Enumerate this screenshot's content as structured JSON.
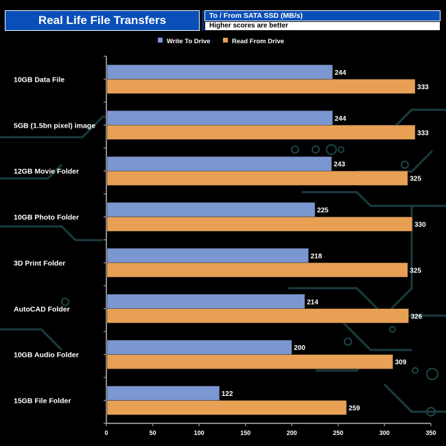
{
  "header": {
    "title": "Real Life File Transfers",
    "subtitle": "To /  From SATA SSD (MB/s)",
    "note": "Higher scores are better"
  },
  "colors": {
    "write": "#7b97d1",
    "read": "#e8a055",
    "background": "#000000",
    "axis": "#8a8a8a",
    "header_blue": "#0a4fb8"
  },
  "chart_data": {
    "type": "bar",
    "orientation": "horizontal",
    "title": "Real Life File Transfers",
    "subtitle": "To /  From SATA SSD (MB/s)",
    "categories": [
      "10GB Data File",
      "5GB (1.5bn pixel) image",
      "12GB Movie Folder",
      "10GB Photo Folder",
      "3D Print Folder",
      "AutoCAD Folder",
      "10GB Audio Folder",
      "15GB File Folder"
    ],
    "series": [
      {
        "name": "Write To  Drive",
        "values": [
          244,
          244,
          243,
          225,
          218,
          214,
          200,
          122
        ]
      },
      {
        "name": "Read From  Drive",
        "values": [
          333,
          333,
          325,
          330,
          325,
          326,
          309,
          259
        ]
      }
    ],
    "xlim": [
      0,
      350
    ],
    "xticks": [
      0,
      50,
      100,
      150,
      200,
      250,
      300,
      350
    ],
    "legend_position": "top-center",
    "grid": false
  }
}
